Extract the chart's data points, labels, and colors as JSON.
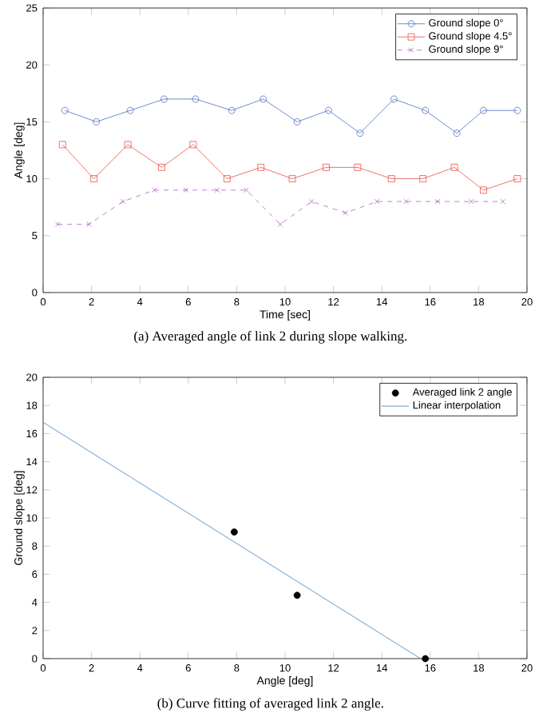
{
  "chart_data": [
    {
      "type": "line",
      "xlabel": "Time [sec]",
      "ylabel": "Angle [deg]",
      "xlim": [
        0,
        20
      ],
      "ylim": [
        0,
        25
      ],
      "xticks": [
        0,
        2,
        4,
        6,
        8,
        10,
        12,
        14,
        16,
        18,
        20
      ],
      "yticks": [
        0,
        5,
        10,
        15,
        20,
        25
      ],
      "legend": "top right",
      "annotations": [
        "(a) Averaged angle of link 2 during slope walking."
      ],
      "series": [
        {
          "name": "Ground slope 0°",
          "color": "#4a6cc0",
          "marker": "circle",
          "line_style": "solid",
          "x": [
            0.9,
            2.2,
            3.6,
            5.0,
            6.3,
            7.8,
            9.1,
            10.5,
            11.8,
            13.1,
            14.5,
            15.8,
            17.1,
            18.2,
            19.6
          ],
          "values": [
            16,
            15,
            16,
            17,
            17,
            16,
            17,
            15,
            16,
            14,
            17,
            16,
            14,
            16,
            16
          ]
        },
        {
          "name": "Ground slope 4.5°",
          "color": "#e8504a",
          "marker": "square",
          "line_style": "solid",
          "x": [
            0.8,
            2.1,
            3.5,
            4.9,
            6.2,
            7.6,
            9.0,
            10.3,
            11.7,
            13.0,
            14.4,
            15.7,
            17.0,
            18.2,
            19.6
          ],
          "values": [
            13,
            10,
            13,
            11,
            13,
            10,
            11,
            10,
            11,
            11,
            10,
            10,
            11,
            9,
            10
          ]
        },
        {
          "name": "Ground slope 9°",
          "color": "#b060c0",
          "marker": "cross",
          "line_style": "dashed",
          "x": [
            0.6,
            1.9,
            3.3,
            4.6,
            5.9,
            7.2,
            8.4,
            9.8,
            11.1,
            12.5,
            13.8,
            15.0,
            16.3,
            17.7,
            19.0
          ],
          "values": [
            6,
            6,
            8,
            9,
            9,
            9,
            9,
            6,
            8,
            7,
            8,
            8,
            8,
            8,
            8
          ]
        }
      ]
    },
    {
      "type": "scatter",
      "xlabel": "Angle [deg]",
      "ylabel": "Ground slope [deg]",
      "xlim": [
        0,
        20
      ],
      "ylim": [
        0,
        20
      ],
      "xticks": [
        0,
        2,
        4,
        6,
        8,
        10,
        12,
        14,
        16,
        18,
        20
      ],
      "yticks": [
        0,
        2,
        4,
        6,
        8,
        10,
        12,
        14,
        16,
        18,
        20
      ],
      "legend": "top right",
      "annotations": [
        "(b) Curve fitting of averaged link 2 angle."
      ],
      "series": [
        {
          "name": "Averaged link 2 angle",
          "color": "#000000",
          "marker": "circle",
          "x": [
            7.9,
            10.5,
            15.8
          ],
          "values": [
            9,
            4.5,
            0
          ]
        },
        {
          "name": "Linear interpolation",
          "type": "line",
          "color": "#3a7fc0",
          "marker": "none",
          "line_style": "solid",
          "x": [
            0,
            15.6
          ],
          "values": [
            16.8,
            0
          ]
        }
      ]
    }
  ]
}
